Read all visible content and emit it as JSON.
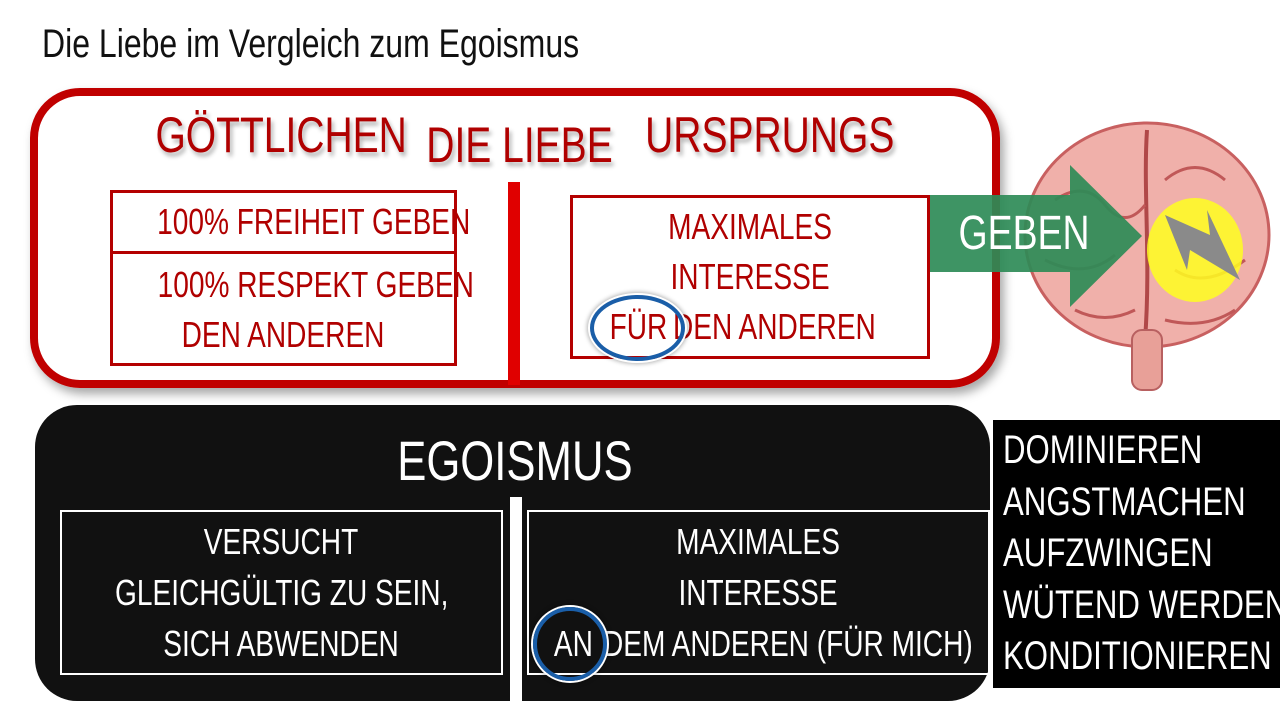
{
  "title": "Die Liebe im Vergleich zum Egoismus",
  "love": {
    "heading_left": "GÖTTLICHEN",
    "heading_center": "DIE LIEBE",
    "heading_right": "URSPRUNGS",
    "left_box": {
      "line1": "100% FREIHEIT GEBEN",
      "line2": "100% RESPEKT GEBEN",
      "line3": "DEN ANDEREN"
    },
    "right_box": {
      "line1": "MAXIMALES",
      "line2": "INTERESSE",
      "circled": "FÜR",
      "line3_rest": "DEN ANDEREN"
    }
  },
  "arrow": {
    "label": "GEBEN",
    "color": "#2e8b57"
  },
  "brain": {
    "icon": "brain-with-lightning-icon"
  },
  "egoism": {
    "heading": "EGOISMUS",
    "left_box": {
      "line1": "VERSUCHT",
      "line2": "GLEICHGÜLTIG ZU SEIN,",
      "line3": "SICH ABWENDEN"
    },
    "right_box": {
      "line1": "MAXIMALES",
      "line2": "INTERESSE",
      "circled": "AN",
      "line3_rest": "DEM ANDEREN (FÜR MICH)"
    }
  },
  "side_list": [
    "DOMINIEREN",
    "ANGSTMACHEN",
    "AUFZWINGEN",
    "WÜTEND WERDEN",
    "KONDITIONIEREN"
  ],
  "colors": {
    "love_red": "#c00000",
    "egoism_black": "#111111",
    "circle_blue": "#1a5ea8"
  }
}
